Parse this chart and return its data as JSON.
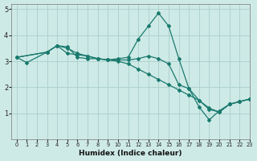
{
  "xlabel": "Humidex (Indice chaleur)",
  "xlim": [
    -0.5,
    23
  ],
  "ylim": [
    0,
    5.2
  ],
  "xticks": [
    0,
    1,
    2,
    3,
    4,
    5,
    6,
    7,
    8,
    9,
    10,
    11,
    12,
    13,
    14,
    15,
    16,
    17,
    18,
    19,
    20,
    21,
    22,
    23
  ],
  "yticks": [
    1,
    2,
    3,
    4,
    5
  ],
  "bg_color": "#ceeae6",
  "grid_color": "#aacfcc",
  "line_color": "#1a7a6e",
  "lines": [
    {
      "x": [
        0,
        1,
        3,
        4,
        5,
        6,
        7,
        8,
        9,
        10,
        11,
        12,
        13,
        14,
        15,
        16,
        17,
        18,
        19,
        20,
        21,
        22,
        23
      ],
      "y": [
        3.15,
        2.95,
        3.35,
        3.6,
        3.55,
        3.15,
        3.1,
        3.1,
        3.05,
        3.1,
        3.15,
        3.85,
        4.35,
        4.85,
        4.35,
        3.1,
        1.95,
        1.25,
        0.75,
        1.1,
        1.35,
        1.45,
        1.55
      ]
    },
    {
      "x": [
        0,
        3,
        4,
        5,
        6,
        7,
        8,
        9,
        10,
        11,
        12,
        13,
        14,
        15,
        16,
        17,
        18,
        19,
        20,
        21,
        22,
        23
      ],
      "y": [
        3.15,
        3.35,
        3.6,
        3.3,
        3.25,
        3.2,
        3.1,
        3.05,
        3.0,
        2.9,
        2.7,
        2.5,
        2.3,
        2.1,
        1.9,
        1.7,
        1.5,
        1.2,
        1.05,
        1.35,
        1.45,
        1.55
      ]
    },
    {
      "x": [
        0,
        3,
        4,
        5,
        6,
        7,
        8,
        9,
        10,
        11,
        12,
        13,
        14,
        15,
        16,
        17,
        18,
        19,
        20,
        21,
        22,
        23
      ],
      "y": [
        3.15,
        3.35,
        3.6,
        3.5,
        3.3,
        3.2,
        3.1,
        3.05,
        3.05,
        3.05,
        3.1,
        3.2,
        3.1,
        2.9,
        2.1,
        1.95,
        1.5,
        1.15,
        1.05,
        1.35,
        1.45,
        1.55
      ]
    }
  ]
}
